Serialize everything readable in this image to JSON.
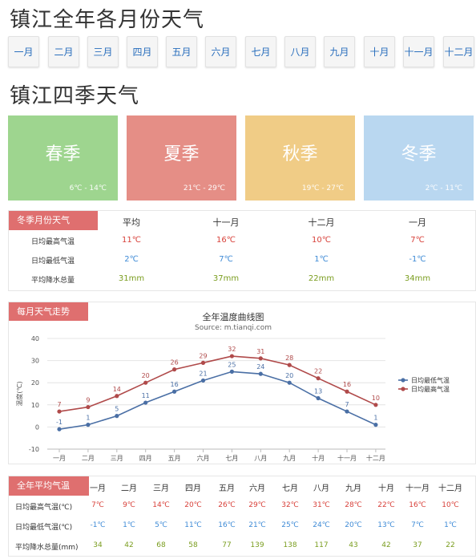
{
  "page": {
    "title_months": "镇江全年各月份天气",
    "title_seasons": "镇江四季天气"
  },
  "months": [
    "一月",
    "二月",
    "三月",
    "四月",
    "五月",
    "六月",
    "七月",
    "八月",
    "九月",
    "十月",
    "十一月",
    "十二月"
  ],
  "seasons": [
    {
      "name": "春季",
      "range": "6℃ - 14℃",
      "color": "#9ed58f"
    },
    {
      "name": "夏季",
      "range": "21℃ - 29℃",
      "color": "#e58e86"
    },
    {
      "name": "秋季",
      "range": "19℃ - 27℃",
      "color": "#f0cc86"
    },
    {
      "name": "冬季",
      "range": "2℃ - 11℃",
      "color": "#b9d7f0"
    }
  ],
  "winter_table": {
    "tag": "冬季月份天气",
    "headers": [
      "平均",
      "十一月",
      "十二月",
      "一月"
    ],
    "rows": [
      {
        "label": "日均最高气温",
        "values": [
          "11℃",
          "16℃",
          "10℃",
          "7℃"
        ],
        "color": "red"
      },
      {
        "label": "日均最低气温",
        "values": [
          "2℃",
          "7℃",
          "1℃",
          "-1℃"
        ],
        "color": "blue"
      },
      {
        "label": "平均降水总量",
        "values": [
          "31mm",
          "37mm",
          "22mm",
          "34mm"
        ],
        "color": "green"
      }
    ]
  },
  "trend": {
    "tag": "每月天气走势"
  },
  "chart_data": {
    "type": "line",
    "title": "全年温度曲线图",
    "subtitle": "Source: m.tianqi.com",
    "ylabel": "温度(℃)",
    "xlabel": "",
    "categories": [
      "一月",
      "二月",
      "三月",
      "四月",
      "五月",
      "六月",
      "七月",
      "八月",
      "九月",
      "十月",
      "十一月",
      "十二月"
    ],
    "ylim": [
      -10,
      40
    ],
    "yticks": [
      -10,
      0,
      10,
      20,
      30,
      40
    ],
    "grid": true,
    "legend_position": "right",
    "series": [
      {
        "name": "日均最低气温",
        "color": "#4a6fa5",
        "values": [
          -1,
          1,
          5,
          11,
          16,
          21,
          25,
          24,
          20,
          13,
          7,
          1
        ]
      },
      {
        "name": "日均最高气温",
        "color": "#b04a4a",
        "values": [
          7,
          9,
          14,
          20,
          26,
          29,
          32,
          31,
          28,
          22,
          16,
          10
        ]
      }
    ]
  },
  "annual_table": {
    "tag": "全年平均气温",
    "rows": [
      {
        "label": "日均最高气温(℃)",
        "values": [
          "7℃",
          "9℃",
          "14℃",
          "20℃",
          "26℃",
          "29℃",
          "32℃",
          "31℃",
          "28℃",
          "22℃",
          "16℃",
          "10℃"
        ],
        "color": "red"
      },
      {
        "label": "日均最低气温(℃)",
        "values": [
          "-1℃",
          "1℃",
          "5℃",
          "11℃",
          "16℃",
          "21℃",
          "25℃",
          "24℃",
          "20℃",
          "13℃",
          "7℃",
          "1℃"
        ],
        "color": "blue"
      },
      {
        "label": "平均降水总量(mm)",
        "values": [
          "34",
          "42",
          "68",
          "58",
          "77",
          "139",
          "138",
          "117",
          "43",
          "42",
          "37",
          "22"
        ],
        "color": "green"
      }
    ]
  }
}
